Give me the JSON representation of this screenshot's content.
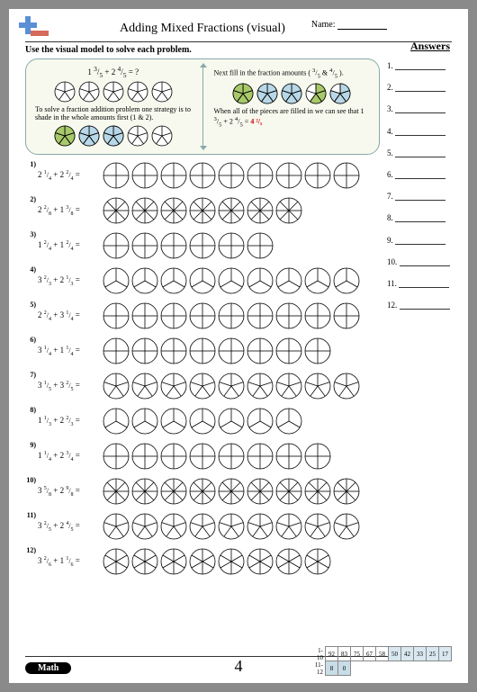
{
  "title": "Adding Mixed Fractions (visual)",
  "name_label": "Name:",
  "instruction": "Use the visual model to solve each problem.",
  "answers_header": "Answers",
  "example": {
    "equation_html": "1 <sup>3</sup>/<sub>5</sub> + 2 <sup>4</sup>/<sub>5</sub> = ?",
    "left_text": "To solve a fraction addition problem one strategy is to shade in the whole amounts first (1 & 2).",
    "right_text_top": "Next fill in the fraction amounts ( <sup>3</sup>/<sub>5</sub> & <sup>4</sup>/<sub>5</sub> ).",
    "right_text_bottom_prefix": "When all of the pieces are filled in we can see that 1 <sup>3</sup>/<sub>5</sub> + 2 <sup>4</sup>/<sub>5</sub> = ",
    "right_answer": "4 ²/₅",
    "top_circles": [
      {
        "slices": 5,
        "filled": 0,
        "color": "#a8c96a"
      },
      {
        "slices": 5,
        "filled": 0,
        "color": "#b8d8e8"
      },
      {
        "slices": 5,
        "filled": 0,
        "color": "#b8d8e8"
      },
      {
        "slices": 5,
        "filled": 0,
        "color": "#fff"
      },
      {
        "slices": 5,
        "filled": 0,
        "color": "#fff"
      }
    ],
    "left_circles": [
      {
        "slices": 5,
        "filled": 5,
        "color": "#a8c96a"
      },
      {
        "slices": 5,
        "filled": 5,
        "color": "#b8d8e8"
      },
      {
        "slices": 5,
        "filled": 5,
        "color": "#b8d8e8"
      },
      {
        "slices": 5,
        "filled": 0,
        "color": "#fff"
      },
      {
        "slices": 5,
        "filled": 0,
        "color": "#fff"
      }
    ],
    "right_circles": [
      {
        "slices": 5,
        "filled": 5,
        "color": "#a8c96a"
      },
      {
        "slices": 5,
        "filled": 5,
        "color": "#b8d8e8"
      },
      {
        "slices": 5,
        "filled": 5,
        "color": "#b8d8e8"
      },
      {
        "slices": 5,
        "filled": 3,
        "color": "#a8c96a"
      },
      {
        "slices": 5,
        "filled": 4,
        "color": "#b8d8e8"
      }
    ]
  },
  "pie_style": {
    "radius": 14,
    "ex_radius": 11,
    "stroke": "#000",
    "stroke_width": 0.8,
    "empty_fill": "#ffffff"
  },
  "problems": [
    {
      "n": "1",
      "a_whole": 2,
      "a_num": 1,
      "a_den": 4,
      "b_whole": 2,
      "b_num": 2,
      "b_den": 4,
      "slices": 4,
      "circles": 9
    },
    {
      "n": "2",
      "a_whole": 2,
      "a_num": 2,
      "a_den": 8,
      "b_whole": 1,
      "b_num": 3,
      "b_den": 8,
      "slices": 8,
      "circles": 7
    },
    {
      "n": "3",
      "a_whole": 1,
      "a_num": 2,
      "a_den": 4,
      "b_whole": 1,
      "b_num": 2,
      "b_den": 4,
      "slices": 4,
      "circles": 6
    },
    {
      "n": "4",
      "a_whole": 3,
      "a_num": 2,
      "a_den": 3,
      "b_whole": 2,
      "b_num": 1,
      "b_den": 3,
      "slices": 3,
      "circles": 9
    },
    {
      "n": "5",
      "a_whole": 2,
      "a_num": 2,
      "a_den": 4,
      "b_whole": 3,
      "b_num": 1,
      "b_den": 4,
      "slices": 4,
      "circles": 9
    },
    {
      "n": "6",
      "a_whole": 3,
      "a_num": 1,
      "a_den": 4,
      "b_whole": 1,
      "b_num": 1,
      "b_den": 4,
      "slices": 4,
      "circles": 8
    },
    {
      "n": "7",
      "a_whole": 3,
      "a_num": 1,
      "a_den": 5,
      "b_whole": 3,
      "b_num": 2,
      "b_den": 5,
      "slices": 5,
      "circles": 9
    },
    {
      "n": "8",
      "a_whole": 1,
      "a_num": 1,
      "a_den": 3,
      "b_whole": 2,
      "b_num": 2,
      "b_den": 3,
      "slices": 3,
      "circles": 7
    },
    {
      "n": "9",
      "a_whole": 1,
      "a_num": 1,
      "a_den": 4,
      "b_whole": 2,
      "b_num": 3,
      "b_den": 4,
      "slices": 4,
      "circles": 8
    },
    {
      "n": "10",
      "a_whole": 3,
      "a_num": 5,
      "a_den": 8,
      "b_whole": 2,
      "b_num": 9,
      "b_den": 8,
      "slices": 8,
      "circles": 9
    },
    {
      "n": "11",
      "a_whole": 3,
      "a_num": 2,
      "a_den": 5,
      "b_whole": 2,
      "b_num": 4,
      "b_den": 5,
      "slices": 5,
      "circles": 9
    },
    {
      "n": "12",
      "a_whole": 3,
      "a_num": 2,
      "a_den": 6,
      "b_whole": 1,
      "b_num": 1,
      "b_den": 6,
      "slices": 6,
      "circles": 8
    }
  ],
  "answer_count": 12,
  "footer": {
    "math_label": "Math",
    "page_number": "4",
    "score_row1_label": "1-10",
    "score_row2_label": "11-12",
    "row1": [
      "92",
      "83",
      "75",
      "67",
      "58",
      "50",
      "42",
      "33",
      "25",
      "17"
    ],
    "row2": [
      "8",
      "0"
    ],
    "row1_hl_start_index": 5,
    "row2_hl": true
  },
  "colors": {
    "logo_plus": "#5a8fd6",
    "logo_minus": "#d66a5a",
    "example_bg": "#f7f9ee",
    "example_border": "#8aa89a"
  }
}
